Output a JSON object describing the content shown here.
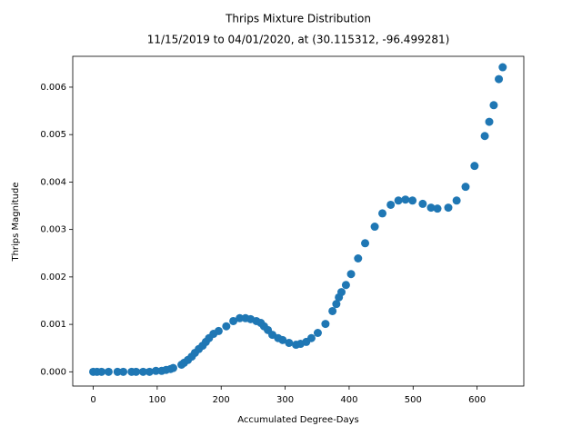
{
  "chart_data": {
    "type": "scatter",
    "title": "Thrips Mixture Distribution",
    "subtitle": "11/15/2019 to 04/01/2020, at (30.115312, -96.499281)",
    "x_label": "Accumulated Degree-Days",
    "y_label": "Thrips Magnitude",
    "color": "#1f77b4",
    "xlim": [
      -32,
      673
    ],
    "ylim": [
      -0.0003,
      0.00665
    ],
    "xticks": [
      0,
      100,
      200,
      300,
      400,
      500,
      600
    ],
    "yticks": [
      {
        "value": 0,
        "label": "0.000"
      },
      {
        "value": 0.001,
        "label": "0.001"
      },
      {
        "value": 0.002,
        "label": "0.002"
      },
      {
        "value": 0.003,
        "label": "0.003"
      },
      {
        "value": 0.004,
        "label": "0.004"
      },
      {
        "value": 0.005,
        "label": "0.005"
      },
      {
        "value": 0.006,
        "label": "0.006"
      }
    ],
    "x": [
      0,
      6,
      13,
      24,
      38,
      47,
      60,
      67,
      78,
      88,
      98,
      107,
      114,
      121,
      125,
      138,
      142,
      148,
      154,
      159,
      165,
      171,
      176,
      181,
      188,
      196,
      208,
      219,
      229,
      238,
      246,
      255,
      262,
      267,
      273,
      280,
      289,
      296,
      306,
      317,
      324,
      333,
      341,
      351,
      363,
      374,
      380,
      384,
      388,
      395,
      403,
      414,
      425,
      440,
      452,
      465,
      477,
      488,
      499,
      515,
      528,
      538,
      555,
      568,
      582,
      596,
      612,
      619,
      626,
      634,
      640
    ],
    "values": [
      0,
      0,
      0,
      0,
      0,
      0,
      0,
      0,
      0,
      0,
      2e-05,
      2e-05,
      4e-05,
      6e-05,
      8e-05,
      0.00015,
      0.00019,
      0.00025,
      0.00032,
      0.0004,
      0.00048,
      0.00055,
      0.00063,
      0.00071,
      0.0008,
      0.00086,
      0.00096,
      0.00107,
      0.00113,
      0.00113,
      0.00111,
      0.00107,
      0.00103,
      0.00096,
      0.00088,
      0.00078,
      0.00071,
      0.00067,
      0.00061,
      0.00057,
      0.00059,
      0.00063,
      0.00071,
      0.00082,
      0.00101,
      0.00128,
      0.00143,
      0.00157,
      0.00168,
      0.00183,
      0.00206,
      0.00239,
      0.00271,
      0.00306,
      0.00334,
      0.00352,
      0.00361,
      0.00363,
      0.00361,
      0.00354,
      0.00346,
      0.00344,
      0.00346,
      0.00361,
      0.0039,
      0.00434,
      0.00497,
      0.00527,
      0.00562,
      0.00617,
      0.00642
    ]
  }
}
